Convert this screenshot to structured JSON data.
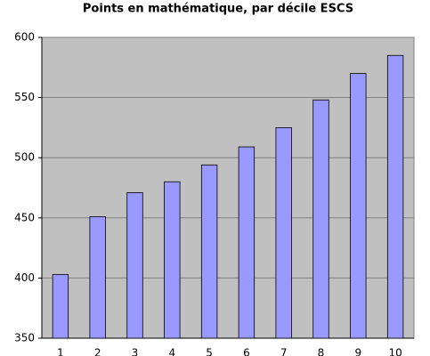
{
  "chart_data": {
    "type": "bar",
    "title": "Points en mathématique, par décile ESCS",
    "categories": [
      "1",
      "2",
      "3",
      "4",
      "5",
      "6",
      "7",
      "8",
      "9",
      "10"
    ],
    "values": [
      403,
      451,
      471,
      480,
      494,
      509,
      525,
      548,
      570,
      585
    ],
    "color": "#9999ff",
    "ylim": [
      350,
      600
    ],
    "yticks": [
      350,
      400,
      450,
      500,
      550,
      600
    ],
    "grid": true
  }
}
